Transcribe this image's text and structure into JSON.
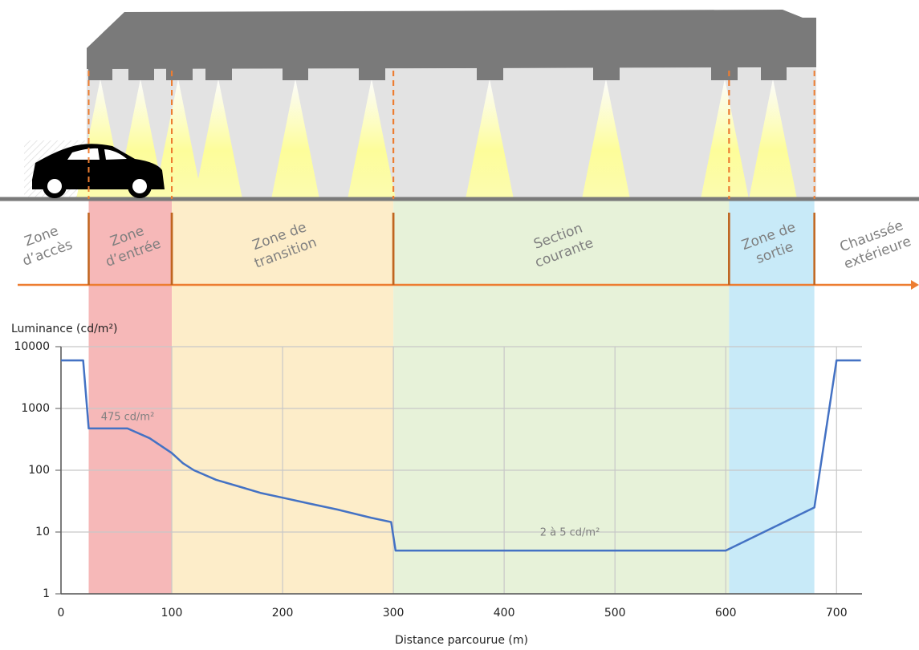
{
  "chart_data": {
    "type": "line",
    "ylabel": "Luminance (cd/m²)",
    "xlabel": "Distance parcourue (m)",
    "xlim": [
      0,
      723
    ],
    "xticks": [
      0,
      100,
      200,
      300,
      400,
      500,
      600,
      700
    ],
    "ylim": [
      1,
      10000
    ],
    "yticks": [
      1,
      10,
      100,
      1000,
      10000
    ],
    "log_y": true,
    "grid": true,
    "zones": [
      {
        "label": [
          "Zone",
          "d’accès"
        ],
        "end": 25
      },
      {
        "label": [
          "Zone",
          "d’entrée"
        ],
        "range": [
          25,
          100
        ],
        "color": "#f6b8b8"
      },
      {
        "label": [
          "Zone de",
          "transition"
        ],
        "range": [
          100,
          300
        ],
        "color": "#fdedc9"
      },
      {
        "label": [
          "Section",
          "courante"
        ],
        "range": [
          300,
          603
        ],
        "color": "#e7f2d9"
      },
      {
        "label": [
          "Zone de",
          "sortie"
        ],
        "range": [
          603,
          680
        ],
        "color": "#c8eaf8"
      },
      {
        "label": [
          "Chaussée",
          "extérieure"
        ],
        "start": 680
      }
    ],
    "series": [
      {
        "color": "#4472c4",
        "x": [
          0,
          20,
          25,
          60,
          80,
          100,
          110,
          120,
          140,
          160,
          180,
          200,
          220,
          250,
          280,
          298,
          302,
          600,
          680,
          700,
          722
        ],
        "values": [
          6000,
          6000,
          475,
          475,
          330,
          190,
          130,
          100,
          70,
          55,
          43,
          36,
          30,
          23,
          17,
          14.5,
          5,
          5,
          25,
          6000,
          6000
        ]
      }
    ],
    "annotations": [
      "475 cd/m²",
      "2 à 5 cd/m²"
    ]
  }
}
